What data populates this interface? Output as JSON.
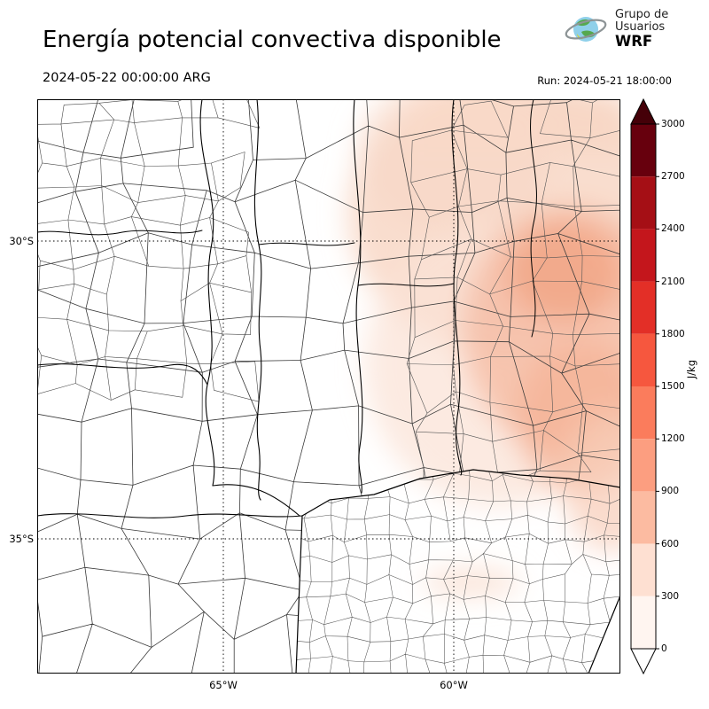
{
  "header": {
    "title": "Energía potencial convectiva disponible",
    "valid_time": "2024-05-22 00:00:00 ARG",
    "run": "Run: 2024-05-21 18:00:00",
    "logo": {
      "line1": "Grupo de",
      "line2": "Usuarios",
      "line3": "WRF"
    }
  },
  "map": {
    "lat_labels": [
      "30°S",
      "35°S"
    ],
    "lon_labels": [
      "65°W",
      "60°W"
    ]
  },
  "colorbar": {
    "unit": "J/kg",
    "ticks": [
      "3000",
      "2700",
      "2400",
      "2100",
      "1800",
      "1500",
      "1200",
      "900",
      "600",
      "300",
      "0"
    ],
    "colors": [
      "#fff5f0",
      "#fee0d2",
      "#fcbba1",
      "#fc9e80",
      "#fb7c5c",
      "#f6573e",
      "#e32f27",
      "#c4161c",
      "#a50f15",
      "#67000d"
    ],
    "over_color": "#450008",
    "under_color": "#ffffff"
  },
  "chart_data": {
    "type": "heatmap",
    "title": "Energía potencial convectiva disponible",
    "variable": "CAPE",
    "unit": "J/kg",
    "scale_min": 0,
    "scale_max": 3000,
    "scale_step": 300,
    "valid_time": "2024-05-22 00:00:00 ARG",
    "run_time": "Run: 2024-05-21 18:00:00",
    "region_summary": "Light CAPE shading (roughly 0-900 J/kg) over northeastern part of the domain; near-zero values elsewhere"
  }
}
